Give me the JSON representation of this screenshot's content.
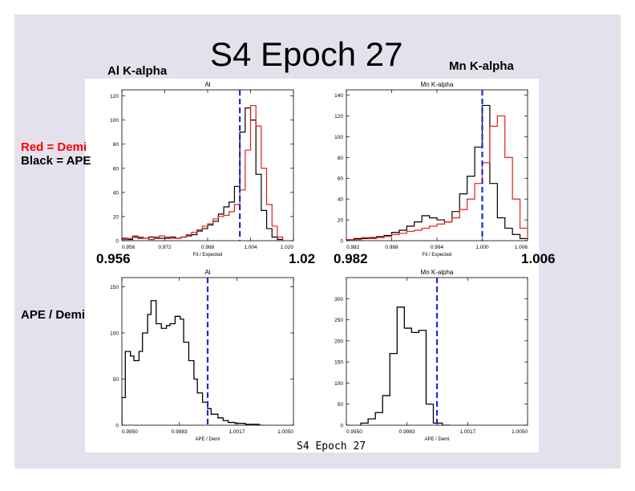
{
  "slide": {
    "title": "S4 Epoch 27",
    "al_heading": "Al K-alpha",
    "mn_heading": "Mn K-alpha",
    "legend_red": "Red = Demi",
    "legend_black": "Black = APE",
    "ratio_label": "APE / Demi",
    "al_axis_min": "0.956",
    "al_axis_max": "1.02",
    "mn_axis_min": "0.982",
    "mn_axis_max": "1.006",
    "caption": "S4 Epoch 27"
  },
  "colors": {
    "demi": "#e0201c",
    "ape": "#000000",
    "marker": "#1a2bd6",
    "slide_bg": "#e4e1ec"
  },
  "chart_data": [
    {
      "id": "al_fit",
      "type": "line",
      "title": "Al",
      "xlabel": "Fit / Expected",
      "ylabel": "",
      "xlim": [
        0.956,
        1.02
      ],
      "ylim": [
        0,
        125
      ],
      "xticks": [
        0.956,
        0.972,
        0.988,
        1.004,
        1.02
      ],
      "xticklabels": [
        "0.956",
        "0.972",
        "0.988",
        "1.004",
        "1.020"
      ],
      "yticks": [
        0,
        20,
        40,
        60,
        80,
        100,
        120
      ],
      "vline": 1.0,
      "step": true,
      "series": [
        {
          "name": "APE",
          "color": "#000000",
          "x": [
            0.956,
            0.958,
            0.96,
            0.962,
            0.964,
            0.966,
            0.968,
            0.97,
            0.972,
            0.974,
            0.976,
            0.978,
            0.98,
            0.982,
            0.984,
            0.986,
            0.988,
            0.99,
            0.992,
            0.994,
            0.996,
            0.998,
            1.0,
            1.002,
            1.004,
            1.006,
            1.008,
            1.01,
            1.012,
            1.014
          ],
          "values": [
            2,
            1,
            3,
            2,
            2,
            3,
            2,
            2,
            2,
            3,
            2,
            3,
            4,
            5,
            8,
            10,
            13,
            16,
            22,
            28,
            32,
            45,
            90,
            110,
            100,
            55,
            25,
            10,
            3,
            1
          ]
        },
        {
          "name": "Demi",
          "color": "#e0201c",
          "x": [
            0.956,
            0.958,
            0.96,
            0.962,
            0.964,
            0.966,
            0.968,
            0.97,
            0.972,
            0.974,
            0.976,
            0.978,
            0.98,
            0.982,
            0.984,
            0.986,
            0.988,
            0.99,
            0.992,
            0.994,
            0.996,
            0.998,
            1.0,
            1.002,
            1.004,
            1.006,
            1.008,
            1.01,
            1.012,
            1.014
          ],
          "values": [
            1,
            2,
            4,
            3,
            2,
            1,
            3,
            4,
            3,
            2,
            2,
            3,
            5,
            7,
            9,
            12,
            14,
            18,
            20,
            21,
            24,
            30,
            42,
            75,
            112,
            95,
            60,
            30,
            12,
            3
          ]
        }
      ]
    },
    {
      "id": "mn_fit",
      "type": "line",
      "title": "Mn K-alpha",
      "xlabel": "Fit / Expected",
      "ylabel": "",
      "xlim": [
        0.982,
        1.006
      ],
      "ylim": [
        0,
        145
      ],
      "xticks": [
        0.982,
        0.988,
        0.994,
        1.0,
        1.006
      ],
      "xticklabels": [
        "0.982",
        "0.988",
        "0.994",
        "1.000",
        "1.006"
      ],
      "yticks": [
        0,
        20,
        40,
        60,
        80,
        100,
        120,
        140
      ],
      "vline": 1.0,
      "step": true,
      "series": [
        {
          "name": "APE",
          "color": "#000000",
          "x": [
            0.982,
            0.983,
            0.984,
            0.985,
            0.986,
            0.987,
            0.988,
            0.989,
            0.99,
            0.991,
            0.992,
            0.993,
            0.994,
            0.995,
            0.996,
            0.997,
            0.998,
            0.999,
            1.0,
            1.001,
            1.002,
            1.003,
            1.004,
            1.005
          ],
          "values": [
            1,
            2,
            2,
            3,
            4,
            5,
            8,
            10,
            14,
            18,
            24,
            22,
            20,
            18,
            28,
            45,
            62,
            90,
            130,
            55,
            22,
            12,
            6,
            2
          ]
        },
        {
          "name": "Demi",
          "color": "#e0201c",
          "x": [
            0.982,
            0.983,
            0.984,
            0.985,
            0.986,
            0.987,
            0.988,
            0.989,
            0.99,
            0.991,
            0.992,
            0.993,
            0.994,
            0.995,
            0.996,
            0.997,
            0.998,
            0.999,
            1.0,
            1.001,
            1.002,
            1.003,
            1.004,
            1.005
          ],
          "values": [
            1,
            1,
            3,
            2,
            3,
            4,
            6,
            7,
            9,
            10,
            12,
            14,
            16,
            18,
            22,
            30,
            40,
            55,
            75,
            110,
            120,
            80,
            40,
            12
          ]
        }
      ]
    },
    {
      "id": "al_ratio",
      "type": "line",
      "title": "Al",
      "xlabel": "APE / Demi",
      "ylabel": "",
      "xlim": [
        0.995,
        1.005
      ],
      "ylim": [
        0,
        160
      ],
      "xticks": [
        0.995,
        0.99835,
        1.0017,
        1.005
      ],
      "xticklabels": [
        "0.9950",
        "0.9983",
        "1.0017",
        "1.0050"
      ],
      "yticks": [
        0,
        50,
        100,
        150
      ],
      "vline": 1.0,
      "step": true,
      "series": [
        {
          "name": "APE / Demi",
          "color": "#000000",
          "x": [
            0.995,
            0.9952,
            0.9955,
            0.9957,
            0.996,
            0.9962,
            0.9965,
            0.9967,
            0.997,
            0.9973,
            0.9976,
            0.9978,
            0.9981,
            0.9984,
            0.9986,
            0.9989,
            0.9992,
            0.9994,
            0.9997,
            1.0,
            1.0002,
            1.0006,
            1.0009,
            1.0012,
            1.0016,
            1.0022,
            1.003
          ],
          "values": [
            30,
            80,
            75,
            70,
            80,
            100,
            120,
            135,
            110,
            105,
            108,
            110,
            118,
            115,
            90,
            70,
            50,
            35,
            25,
            18,
            12,
            8,
            5,
            3,
            2,
            1,
            0
          ]
        }
      ]
    },
    {
      "id": "mn_ratio",
      "type": "line",
      "title": "Mn K-alpha",
      "xlabel": "APE / Demi",
      "ylabel": "",
      "xlim": [
        0.995,
        1.005
      ],
      "ylim": [
        0,
        350
      ],
      "xticks": [
        0.995,
        0.99835,
        1.0017,
        1.005
      ],
      "xticklabels": [
        "0.9950",
        "0.9983",
        "1.0017",
        "1.0050"
      ],
      "yticks": [
        0,
        50,
        100,
        150,
        200,
        250,
        300
      ],
      "vline": 1.0,
      "step": true,
      "series": [
        {
          "name": "APE / Demi",
          "color": "#000000",
          "x": [
            0.9958,
            0.9962,
            0.9966,
            0.997,
            0.9974,
            0.9978,
            0.9982,
            0.9986,
            0.999,
            0.9994,
            0.9998,
            1.0003
          ],
          "values": [
            5,
            15,
            30,
            70,
            170,
            280,
            230,
            220,
            225,
            50,
            5,
            0
          ]
        }
      ]
    }
  ]
}
